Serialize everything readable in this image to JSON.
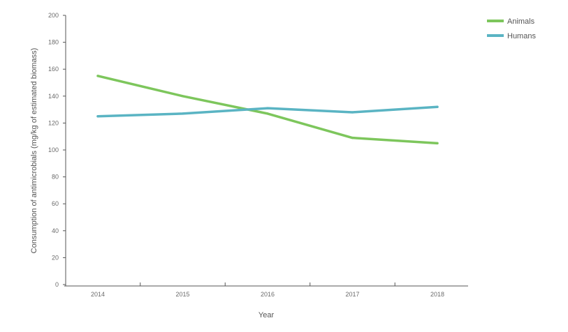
{
  "chart_data": {
    "type": "line",
    "title": "",
    "xlabel": "Year",
    "ylabel": "Consumption of antimicrobials (mg/kg of estimated biomass)",
    "x": [
      "2014",
      "2015",
      "2016",
      "2017",
      "2018"
    ],
    "ylim": [
      0,
      200
    ],
    "yticks": [
      0,
      20,
      40,
      60,
      80,
      100,
      120,
      140,
      160,
      180,
      200
    ],
    "grid": false,
    "legend_position": "top-right",
    "series": [
      {
        "name": "Animals",
        "color": "#7dc65c",
        "values": [
          155,
          140,
          127,
          109,
          105
        ]
      },
      {
        "name": "Humans",
        "color": "#5ab4c3",
        "values": [
          125,
          127,
          131,
          128,
          132
        ]
      }
    ]
  }
}
